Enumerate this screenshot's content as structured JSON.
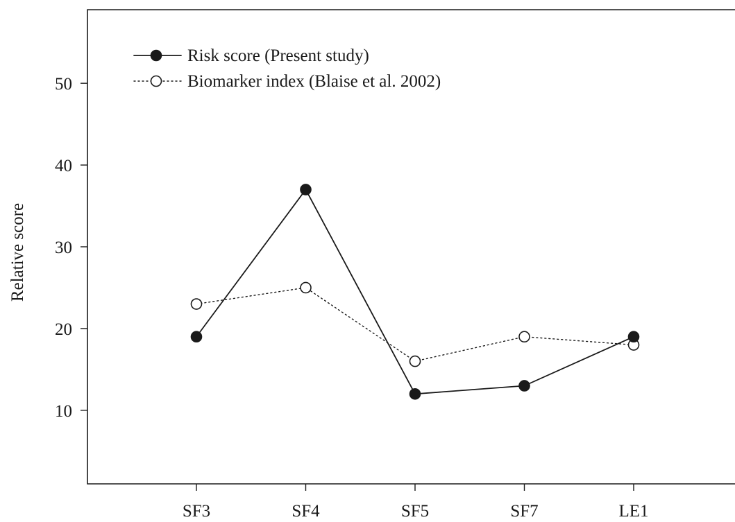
{
  "chart_data": {
    "type": "line",
    "categories": [
      "SF3",
      "SF4",
      "SF5",
      "SF7",
      "LE1"
    ],
    "series": [
      {
        "name": "Risk score (Present study)",
        "values": [
          19,
          37,
          12,
          13,
          19
        ],
        "style": "solid",
        "marker": "filled-circle",
        "color": "#1a1a1a"
      },
      {
        "name": "Biomarker index (Blaise et al. 2002)",
        "values": [
          23,
          25,
          16,
          19,
          18
        ],
        "style": "dotted",
        "marker": "open-circle",
        "color": "#1a1a1a"
      }
    ],
    "title": "",
    "xlabel": "",
    "ylabel": "Relative score",
    "ylim": [
      1,
      59
    ],
    "yticks": [
      10,
      20,
      30,
      40,
      50
    ],
    "grid": false,
    "legend_position": "top-left"
  }
}
